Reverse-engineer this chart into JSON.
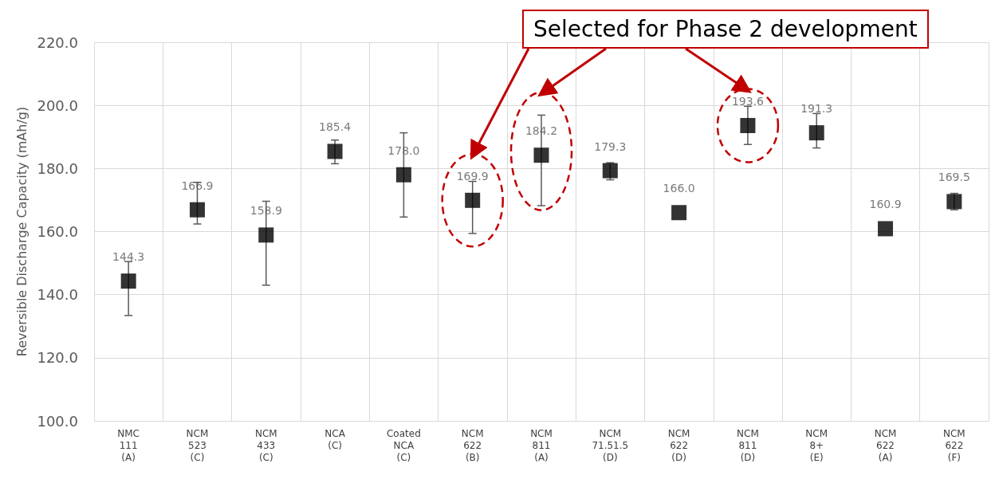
{
  "chart_data": {
    "type": "scatter",
    "categories": [
      "NMC\n111\n(A)",
      "NCM\n523\n(C)",
      "NCM\n433\n(C)",
      "NCA\n(C)",
      "Coated\nNCA\n(C)",
      "NCM\n622\n(B)",
      "NCM\n811\n(A)",
      "NCM\n71.51.5\n(D)",
      "NCM\n622\n(D)",
      "NCM\n811\n(D)",
      "NCM\n8+\n(E)",
      "NCM\n622\n(A)",
      "NCM\n622\n(F)"
    ],
    "values": [
      144.3,
      166.9,
      158.9,
      185.4,
      178.0,
      169.9,
      184.2,
      179.3,
      166.0,
      193.6,
      191.3,
      160.9,
      169.5
    ],
    "value_labels": [
      "144.3",
      "166.9",
      "158.9",
      "185.4",
      "178.0",
      "169.9",
      "184.2",
      "179.3",
      "166.0",
      "193.6",
      "191.3",
      "160.9",
      "169.5"
    ],
    "errors": [
      [
        133.4,
        150.5
      ],
      [
        162.4,
        175.6
      ],
      [
        143.0,
        169.6
      ],
      [
        181.5,
        189.0
      ],
      [
        164.6,
        191.3
      ],
      [
        159.4,
        175.9
      ],
      [
        168.2,
        196.9
      ],
      [
        176.4,
        181.8
      ],
      null,
      [
        187.6,
        199.7
      ],
      [
        186.5,
        197.4
      ],
      null,
      [
        166.9,
        172.1
      ]
    ],
    "color": "#000000",
    "ylabel": "Reversible Discharge Capacity (mAh/g)",
    "ylim": [
      100,
      220
    ],
    "yticks": [
      {
        "value": 100,
        "label": "100.0"
      },
      {
        "value": 120,
        "label": "120.0"
      },
      {
        "value": 140,
        "label": "140.0"
      },
      {
        "value": 160,
        "label": "160.0"
      },
      {
        "value": 180,
        "label": "180.0"
      },
      {
        "value": 200,
        "label": "200.0"
      },
      {
        "value": 220,
        "label": "220.0"
      }
    ],
    "grid": true,
    "marker": "square",
    "annotations": [
      "Selected for Phase 2 development"
    ]
  }
}
